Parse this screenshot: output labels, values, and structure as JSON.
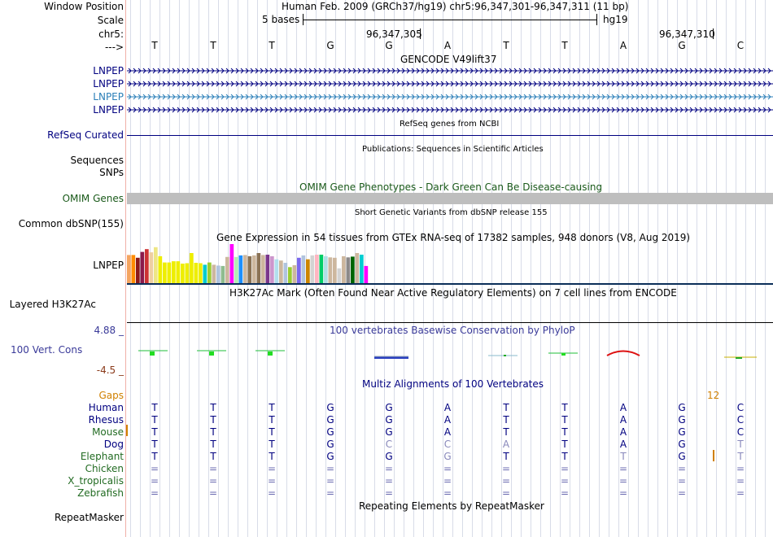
{
  "header": {
    "window_position_label": "Window Position",
    "window_position_value": "Human Feb. 2009 (GRCh37/hg19)   chr5:96,347,301-96,347,311 (11 bp)",
    "scale_label": "Scale",
    "scale_text": "5 bases",
    "scale_assembly": "hg19",
    "chrom_label": "chr5:",
    "coord_1": "96,347,305",
    "coord_2": "96,347,310",
    "strand_label": "--->",
    "bases": [
      "T",
      "T",
      "T",
      "G",
      "G",
      "A",
      "T",
      "T",
      "A",
      "G",
      "C"
    ]
  },
  "tracks": {
    "gencode": {
      "title": "GENCODE V49lift37",
      "labels": [
        "LNPEP",
        "LNPEP",
        "LNPEP",
        "LNPEP"
      ],
      "colors": [
        "#000080",
        "#000080",
        "#2b7fb8",
        "#000080"
      ]
    },
    "refseq": {
      "label": "RefSeq Curated",
      "title": "RefSeq genes from NCBI"
    },
    "publications": {
      "title": "Publications: Sequences in Scientific Articles"
    },
    "sequences_label": "Sequences",
    "snps_label": "SNPs",
    "omim": {
      "label": "OMIM Genes",
      "title": "OMIM Gene Phenotypes - Dark Green Can Be Disease-causing"
    },
    "dbsnp": {
      "label": "Common dbSNP(155)",
      "title": "Short Genetic Variants from dbSNP release 155"
    },
    "gtex": {
      "title": "Gene Expression in 54 tissues from GTEx RNA-seq of 17382 samples, 948 donors (V8, Aug 2019)",
      "label": "LNPEP",
      "bar_values": [
        0.72,
        0.72,
        0.65,
        0.8,
        0.87,
        0.79,
        0.92,
        0.69,
        0.53,
        0.53,
        0.56,
        0.56,
        0.5,
        0.51,
        0.77,
        0.52,
        0.51,
        0.47,
        0.53,
        0.47,
        0.45,
        0.44,
        0.67,
        1.0,
        0.67,
        0.71,
        0.72,
        0.69,
        0.71,
        0.77,
        0.72,
        0.73,
        0.69,
        0.61,
        0.58,
        0.52,
        0.41,
        0.46,
        0.65,
        0.71,
        0.61,
        0.71,
        0.73,
        0.73,
        0.69,
        0.66,
        0.65,
        0.38,
        0.69,
        0.66,
        0.68,
        0.77,
        0.73,
        0.44
      ],
      "bar_colors": [
        "#f4a460",
        "#ff8c00",
        "#8b1a1a",
        "#8b1a4a",
        "#cd3333",
        "#eecfa1",
        "#eee685",
        "#eeee00",
        "#eeee00",
        "#eeee00",
        "#eeee00",
        "#eeee00",
        "#eeee00",
        "#eeee00",
        "#eeee00",
        "#eeee00",
        "#eeee00",
        "#00cdcd",
        "#9acd32",
        "#cdb79e",
        "#b0c4de",
        "#8fbc8f",
        "#cdb79e",
        "#ff00ff",
        "#b4eeb4",
        "#1e90ff",
        "#cdb79e",
        "#8b7355",
        "#cdb79e",
        "#8b7355",
        "#cdb79e",
        "#7a378b",
        "#cd96cd",
        "#b2dfee",
        "#cdb79e",
        "#b0c4de",
        "#9acd32",
        "#cdb79e",
        "#7a67ee",
        "#b0c4de",
        "#cd8500",
        "#d3d3d3",
        "#ffb6c1",
        "#00cd66",
        "#b0e0e6",
        "#cdb79e",
        "#cdb79e",
        "#d3d3d3",
        "#cdb79e",
        "#8b8989",
        "#006400",
        "#cdb79e",
        "#00ced1",
        "#ff00ff"
      ]
    },
    "h3k27ac": {
      "label": "Layered H3K27Ac",
      "title": "H3K27Ac Mark (Often Found Near Active Regulatory Elements) on 7 cell lines from ENCODE"
    },
    "phylop": {
      "label": "100 Vert. Cons",
      "title": "100 vertebrates Basewise Conservation by PhyloP",
      "max_label": "4.88 _",
      "min_label": "-4.5 _"
    },
    "multiz": {
      "title": "Multiz Alignments of 100 Vertebrates",
      "gaps_label": "Gaps",
      "gaps_count": "12",
      "species": [
        {
          "name": "Human",
          "color": "#000080",
          "bases": [
            "T",
            "T",
            "T",
            "G",
            "G",
            "A",
            "T",
            "T",
            "A",
            "G",
            "C"
          ]
        },
        {
          "name": "Rhesus",
          "color": "#000080",
          "bases": [
            "T",
            "T",
            "T",
            "G",
            "G",
            "A",
            "T",
            "T",
            "A",
            "G",
            "C"
          ]
        },
        {
          "name": "Mouse",
          "color": "#226b22",
          "bases": [
            "T",
            "T",
            "T",
            "G",
            "G",
            "A",
            "T",
            "T",
            "A",
            "G",
            "C"
          ]
        },
        {
          "name": "Dog",
          "color": "#000080",
          "bases": [
            "T",
            "T",
            "T",
            "G",
            "C",
            "C",
            "A",
            "T",
            "A",
            "G",
            "T"
          ]
        },
        {
          "name": "Elephant",
          "color": "#226b22",
          "bases": [
            "T",
            "T",
            "T",
            "G",
            "G",
            "G",
            "T",
            "T",
            "T",
            "G",
            "T"
          ]
        },
        {
          "name": "Chicken",
          "color": "#226b22",
          "bases": [
            "=",
            "=",
            "=",
            "=",
            "=",
            "=",
            "=",
            "=",
            "=",
            "=",
            "="
          ]
        },
        {
          "name": "X_tropicalis",
          "color": "#226b22",
          "bases": [
            "=",
            "=",
            "=",
            "=",
            "=",
            "=",
            "=",
            "=",
            "=",
            "=",
            "="
          ]
        },
        {
          "name": "Zebrafish",
          "color": "#226b22",
          "bases": [
            "=",
            "=",
            "=",
            "=",
            "=",
            "=",
            "=",
            "=",
            "=",
            "=",
            "="
          ]
        }
      ]
    },
    "repeatmasker": {
      "label": "RepeatMasker",
      "title": "Repeating Elements by RepeatMasker"
    }
  }
}
